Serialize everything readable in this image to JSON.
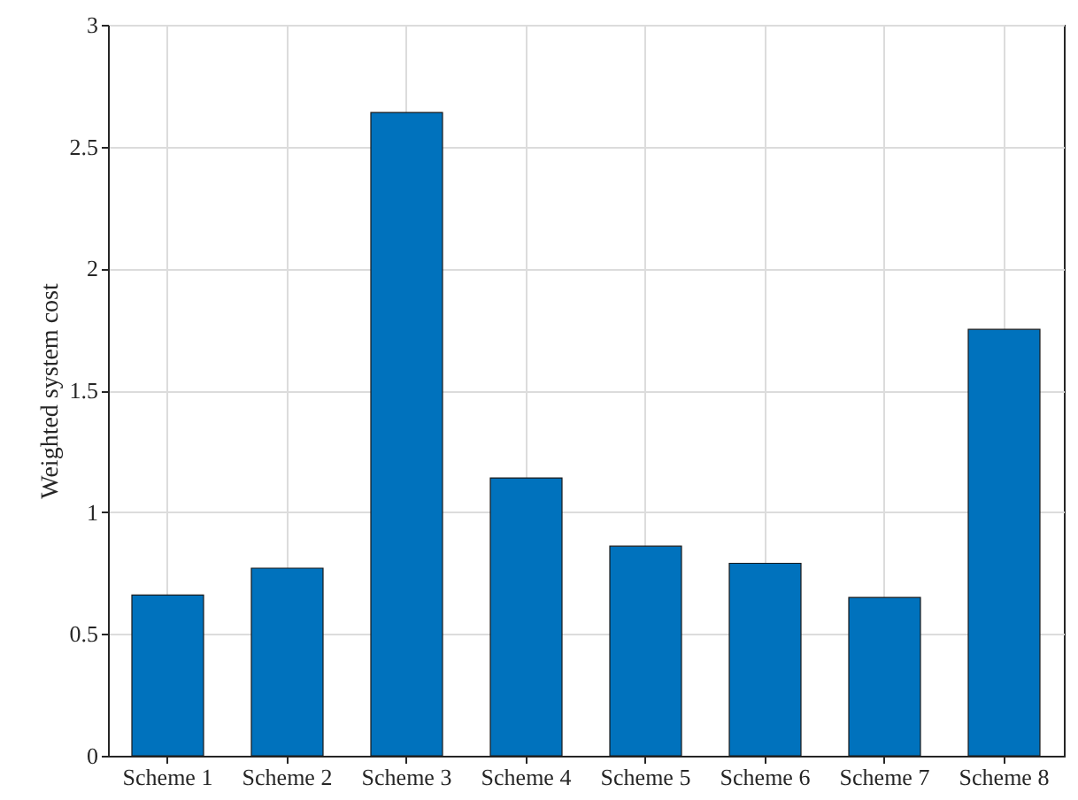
{
  "chart_data": {
    "type": "bar",
    "ylabel": "Weighted system cost",
    "categories": [
      "Scheme 1",
      "Scheme 2",
      "Scheme 3",
      "Scheme 4",
      "Scheme 5",
      "Scheme 6",
      "Scheme 7",
      "Scheme 8"
    ],
    "values": [
      0.66,
      0.77,
      2.64,
      1.14,
      0.86,
      0.79,
      0.65,
      1.75
    ],
    "color": "#0072bd",
    "ylim": [
      0,
      3
    ],
    "yticks": [
      0,
      0.5,
      1,
      1.5,
      2,
      2.5,
      3
    ],
    "grid": true
  }
}
